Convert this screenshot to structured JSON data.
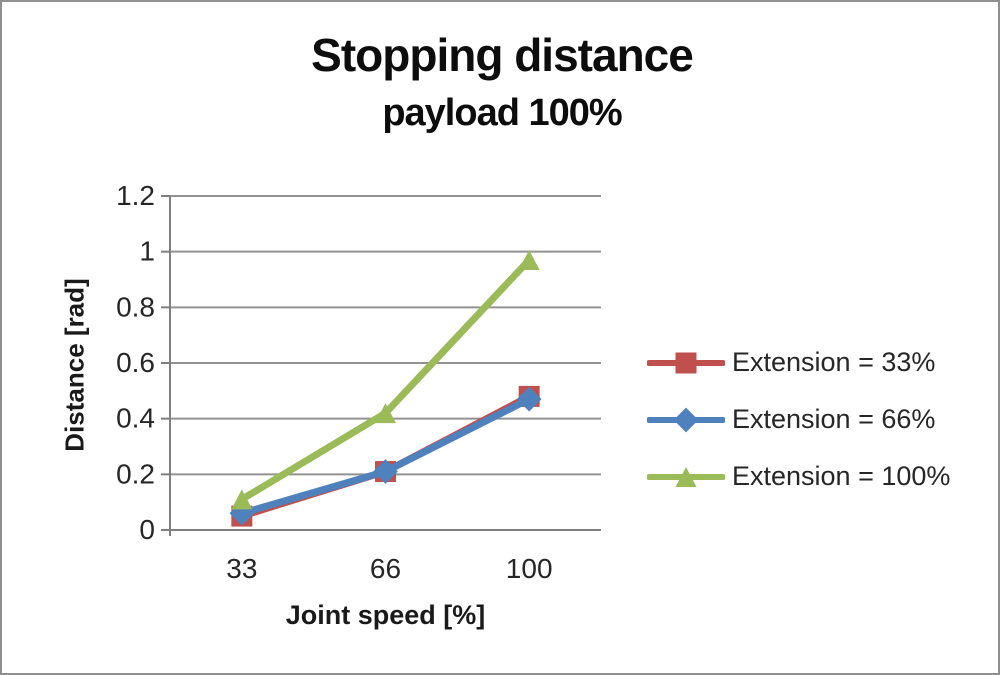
{
  "chart": {
    "title": "Stopping distance",
    "subtitle": "payload 100%",
    "xlabel": "Joint speed [%]",
    "ylabel": "Distance [rad]"
  },
  "chart_data": {
    "type": "line",
    "title": "Stopping distance",
    "subtitle": "payload 100%",
    "xlabel": "Joint speed [%]",
    "ylabel": "Distance [rad]",
    "categories": [
      "33",
      "66",
      "100"
    ],
    "ylim": [
      0,
      1.2
    ],
    "y_ticks": [
      0,
      0.2,
      0.4,
      0.6,
      0.8,
      1,
      1.2
    ],
    "y_tick_labels": [
      "0",
      "0.2",
      "0.4",
      "0.6",
      "0.8",
      "1",
      "1.2"
    ],
    "grid": true,
    "legend_position": "right",
    "series": [
      {
        "name": "Extension = 33%",
        "color": "#c0504d",
        "marker": "square",
        "values": [
          0.05,
          0.21,
          0.48
        ]
      },
      {
        "name": "Extension = 66%",
        "color": "#4f81bd",
        "marker": "diamond",
        "values": [
          0.06,
          0.21,
          0.47
        ]
      },
      {
        "name": "Extension = 100%",
        "color": "#9bbb59",
        "marker": "triangle",
        "values": [
          0.11,
          0.42,
          0.97
        ]
      }
    ]
  },
  "style": {
    "gridline_color": "#929292",
    "axis_color": "#7f7f7f",
    "tick_text_color": "#262626",
    "title_color": "#0d0d0d",
    "background": "#ffffff",
    "border_color": "#8f8f8f"
  }
}
